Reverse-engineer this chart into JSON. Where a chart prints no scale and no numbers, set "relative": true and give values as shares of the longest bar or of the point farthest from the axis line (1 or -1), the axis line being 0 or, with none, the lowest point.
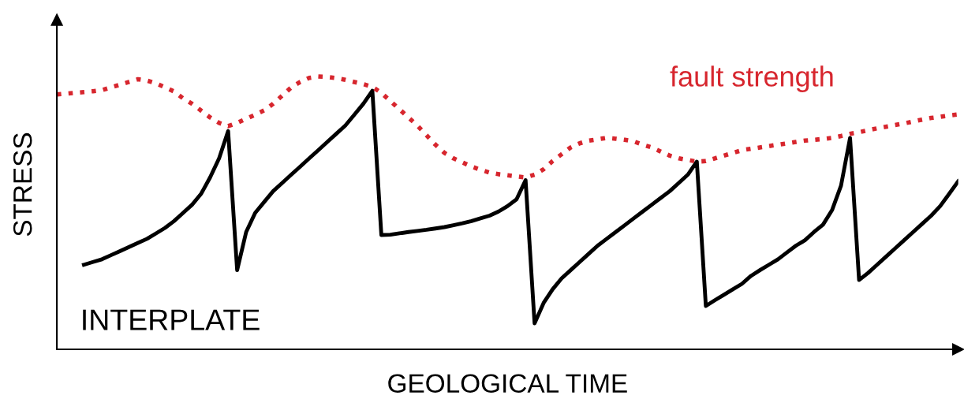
{
  "chart_data": {
    "type": "line",
    "relative": true,
    "xlabel": "GEOLOGICAL TIME",
    "ylabel": "STRESS",
    "tick_labels": false,
    "annotations": [
      "INTERPLATE"
    ],
    "categories": [
      null,
      null,
      null,
      null,
      null,
      null,
      null,
      null,
      null,
      null,
      null,
      null,
      null,
      null,
      null,
      null,
      null,
      null,
      null,
      null,
      null,
      null,
      null,
      null,
      null,
      null,
      null,
      null,
      null,
      null,
      null,
      null,
      null,
      null,
      null,
      null,
      null,
      null,
      null,
      null,
      null,
      null,
      null,
      null,
      null,
      null,
      null,
      null,
      null,
      null,
      null,
      null,
      null,
      null,
      null,
      null,
      null,
      null,
      null,
      null,
      null,
      null,
      null,
      null,
      null,
      null,
      null,
      null,
      null,
      null,
      null,
      null,
      null,
      null,
      null,
      null,
      null,
      null,
      null,
      null,
      null,
      null,
      null,
      null,
      null,
      null,
      null,
      null,
      null,
      null,
      null,
      null,
      null,
      null,
      null,
      null,
      null,
      null,
      null,
      null,
      null
    ],
    "series": [
      {
        "color": "#000000",
        "line_style": "solid",
        "values": [
          null,
          null,
          null,
          0.31,
          0.32,
          0.33,
          0.345,
          0.36,
          0.375,
          0.39,
          0.405,
          0.425,
          0.445,
          0.47,
          0.5,
          0.53,
          0.57,
          0.63,
          0.7,
          0.8,
          0.29,
          0.43,
          0.5,
          0.54,
          0.58,
          0.61,
          0.64,
          0.67,
          0.7,
          0.73,
          0.76,
          0.79,
          0.82,
          0.86,
          0.9,
          0.948,
          0.419,
          0.42,
          0.425,
          0.43,
          0.434,
          0.438,
          0.443,
          0.448,
          0.455,
          0.462,
          0.47,
          0.48,
          0.49,
          0.505,
          0.525,
          0.55,
          0.62,
          0.095,
          0.17,
          0.22,
          0.26,
          0.29,
          0.32,
          0.35,
          0.38,
          0.405,
          0.43,
          0.455,
          0.48,
          0.505,
          0.53,
          0.555,
          0.58,
          0.61,
          0.64,
          0.688,
          0.159,
          0.18,
          0.2,
          0.22,
          0.24,
          0.269,
          0.29,
          0.31,
          0.33,
          0.355,
          0.38,
          0.4,
          0.43,
          0.457,
          0.51,
          0.6,
          0.775,
          0.254,
          0.28,
          0.31,
          0.34,
          0.37,
          0.4,
          0.43,
          0.46,
          0.49,
          0.525,
          0.57,
          0.616
        ]
      },
      {
        "name": "fault strength",
        "color": "#d7262e",
        "line_style": "dotted",
        "values": [
          0.934,
          0.937,
          0.94,
          0.943,
          0.946,
          0.95,
          0.96,
          0.97,
          0.98,
          0.99,
          0.985,
          0.975,
          0.96,
          0.945,
          0.92,
          0.9,
          0.875,
          0.85,
          0.83,
          0.818,
          0.83,
          0.845,
          0.86,
          0.876,
          0.9,
          0.93,
          0.96,
          0.98,
          0.995,
          1.0,
          0.998,
          0.994,
          0.988,
          0.98,
          0.972,
          0.962,
          0.94,
          0.91,
          0.88,
          0.85,
          0.82,
          0.785,
          0.75,
          0.72,
          0.7,
          0.685,
          0.67,
          0.658,
          0.648,
          0.642,
          0.638,
          0.634,
          0.63,
          0.64,
          0.66,
          0.69,
          0.715,
          0.74,
          0.755,
          0.765,
          0.77,
          0.775,
          0.772,
          0.768,
          0.762,
          0.75,
          0.74,
          0.725,
          0.71,
          0.7,
          0.694,
          0.688,
          0.69,
          0.7,
          0.71,
          0.72,
          0.73,
          0.735,
          0.74,
          0.745,
          0.75,
          0.755,
          0.76,
          0.765,
          0.768,
          0.771,
          0.775,
          0.782,
          0.79,
          0.796,
          0.803,
          0.81,
          0.816,
          0.822,
          0.828,
          0.835,
          0.842,
          0.848,
          0.852,
          0.857,
          0.861
        ]
      }
    ]
  }
}
